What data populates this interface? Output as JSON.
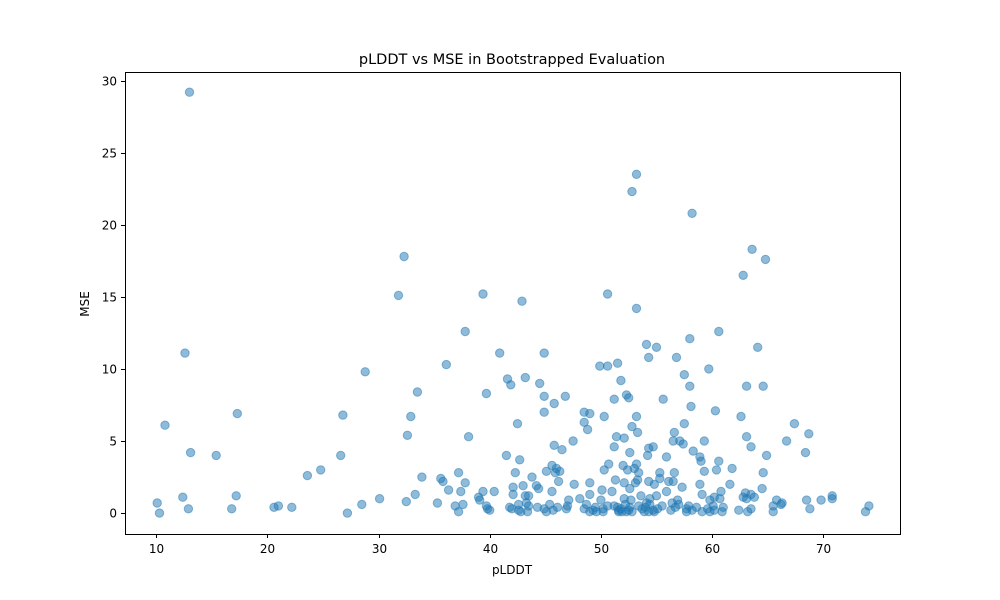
{
  "chart_data": {
    "type": "scatter",
    "title": "pLDDT vs MSE in Bootstrapped Evaluation",
    "xlabel": "pLDDT",
    "ylabel": "MSE",
    "xlim": [
      7.2,
      76.9
    ],
    "ylim": [
      -1.45,
      30.6
    ],
    "xticks": [
      10,
      20,
      30,
      40,
      50,
      60,
      70
    ],
    "yticks": [
      0,
      5,
      10,
      15,
      20,
      25,
      30
    ],
    "grid": false,
    "marker_color": "#1f77b4",
    "marker_alpha": 0.5,
    "points": [
      [
        13.0,
        29.2
      ],
      [
        53.2,
        23.5
      ],
      [
        52.8,
        22.3
      ],
      [
        58.2,
        20.8
      ],
      [
        63.6,
        18.3
      ],
      [
        32.3,
        17.8
      ],
      [
        64.8,
        17.6
      ],
      [
        62.8,
        16.5
      ],
      [
        39.4,
        15.2
      ],
      [
        50.6,
        15.2
      ],
      [
        31.8,
        15.1
      ],
      [
        42.9,
        14.7
      ],
      [
        53.2,
        14.2
      ],
      [
        37.8,
        12.6
      ],
      [
        60.6,
        12.6
      ],
      [
        58.0,
        12.1
      ],
      [
        54.1,
        11.7
      ],
      [
        55.0,
        11.5
      ],
      [
        64.1,
        11.5
      ],
      [
        12.6,
        11.1
      ],
      [
        40.9,
        11.1
      ],
      [
        44.9,
        11.1
      ],
      [
        54.3,
        10.8
      ],
      [
        56.8,
        10.8
      ],
      [
        51.5,
        10.4
      ],
      [
        36.1,
        10.3
      ],
      [
        49.9,
        10.2
      ],
      [
        50.6,
        10.2
      ],
      [
        59.7,
        10.0
      ],
      [
        28.8,
        9.8
      ],
      [
        57.5,
        9.6
      ],
      [
        43.2,
        9.4
      ],
      [
        41.6,
        9.3
      ],
      [
        51.8,
        9.2
      ],
      [
        41.9,
        8.9
      ],
      [
        44.5,
        9.0
      ],
      [
        63.1,
        8.8
      ],
      [
        64.6,
        8.8
      ],
      [
        58.0,
        8.8
      ],
      [
        33.5,
        8.4
      ],
      [
        39.7,
        8.3
      ],
      [
        52.3,
        8.2
      ],
      [
        44.9,
        8.1
      ],
      [
        46.8,
        8.1
      ],
      [
        52.5,
        8.0
      ],
      [
        55.6,
        7.9
      ],
      [
        51.2,
        7.9
      ],
      [
        45.8,
        7.6
      ],
      [
        58.1,
        7.4
      ],
      [
        60.3,
        7.1
      ],
      [
        44.9,
        7.0
      ],
      [
        48.5,
        7.0
      ],
      [
        49.0,
        6.9
      ],
      [
        17.3,
        6.9
      ],
      [
        26.8,
        6.8
      ],
      [
        32.9,
        6.7
      ],
      [
        50.3,
        6.7
      ],
      [
        53.2,
        6.7
      ],
      [
        62.6,
        6.7
      ],
      [
        48.5,
        6.3
      ],
      [
        67.4,
        6.2
      ],
      [
        10.8,
        6.1
      ],
      [
        42.5,
        6.2
      ],
      [
        57.5,
        6.2
      ],
      [
        52.8,
        6.0
      ],
      [
        48.8,
        5.8
      ],
      [
        53.3,
        5.6
      ],
      [
        56.6,
        5.6
      ],
      [
        68.7,
        5.5
      ],
      [
        32.6,
        5.4
      ],
      [
        38.1,
        5.3
      ],
      [
        63.1,
        5.3
      ],
      [
        51.4,
        5.3
      ],
      [
        52.1,
        5.2
      ],
      [
        47.5,
        5.0
      ],
      [
        56.5,
        5.0
      ],
      [
        57.1,
        5.0
      ],
      [
        59.3,
        5.0
      ],
      [
        66.7,
        5.0
      ],
      [
        57.4,
        4.8
      ],
      [
        45.8,
        4.7
      ],
      [
        51.2,
        4.6
      ],
      [
        54.7,
        4.6
      ],
      [
        63.5,
        4.6
      ],
      [
        54.3,
        4.5
      ],
      [
        46.5,
        4.4
      ],
      [
        58.3,
        4.3
      ],
      [
        68.4,
        4.2
      ],
      [
        13.1,
        4.2
      ],
      [
        52.6,
        4.2
      ],
      [
        15.4,
        4.0
      ],
      [
        26.6,
        4.0
      ],
      [
        41.5,
        4.0
      ],
      [
        54.2,
        4.0
      ],
      [
        64.9,
        4.0
      ],
      [
        55.9,
        3.9
      ],
      [
        58.9,
        3.9
      ],
      [
        59.0,
        3.6
      ],
      [
        42.7,
        3.7
      ],
      [
        60.6,
        3.6
      ],
      [
        50.7,
        3.4
      ],
      [
        53.2,
        3.4
      ],
      [
        52.0,
        3.3
      ],
      [
        45.6,
        3.3
      ],
      [
        46.0,
        3.1
      ],
      [
        53.0,
        3.1
      ],
      [
        52.4,
        3.0
      ],
      [
        60.4,
        3.0
      ],
      [
        61.8,
        3.1
      ],
      [
        59.3,
        2.9
      ],
      [
        46.3,
        2.9
      ],
      [
        50.3,
        3.0
      ],
      [
        24.8,
        3.0
      ],
      [
        45.1,
        2.9
      ],
      [
        37.2,
        2.8
      ],
      [
        42.3,
        2.8
      ],
      [
        45.9,
        2.8
      ],
      [
        53.4,
        2.8
      ],
      [
        55.3,
        2.8
      ],
      [
        56.6,
        2.8
      ],
      [
        64.6,
        2.8
      ],
      [
        23.6,
        2.6
      ],
      [
        33.9,
        2.5
      ],
      [
        43.8,
        2.5
      ],
      [
        35.6,
        2.4
      ],
      [
        55.3,
        2.4
      ],
      [
        53.3,
        2.3
      ],
      [
        51.3,
        2.3
      ],
      [
        35.8,
        2.2
      ],
      [
        46.2,
        2.2
      ],
      [
        56.5,
        2.2
      ],
      [
        54.3,
        2.2
      ],
      [
        52.1,
        2.1
      ],
      [
        56.1,
        2.2
      ],
      [
        53.1,
        2.1
      ],
      [
        37.8,
        2.1
      ],
      [
        49.0,
        2.1
      ],
      [
        58.9,
        2.0
      ],
      [
        47.6,
        2.0
      ],
      [
        43.0,
        1.9
      ],
      [
        44.2,
        1.9
      ],
      [
        54.8,
        2.0
      ],
      [
        61.6,
        2.0
      ],
      [
        42.1,
        1.8
      ],
      [
        57.3,
        1.8
      ],
      [
        44.4,
        1.7
      ],
      [
        52.6,
        1.7
      ],
      [
        64.5,
        1.7
      ],
      [
        36.3,
        1.6
      ],
      [
        50.1,
        1.6
      ],
      [
        37.4,
        1.5
      ],
      [
        39.4,
        1.5
      ],
      [
        40.4,
        1.5
      ],
      [
        45.6,
        1.5
      ],
      [
        51.0,
        1.5
      ],
      [
        55.9,
        1.5
      ],
      [
        60.8,
        1.5
      ],
      [
        63.0,
        1.4
      ],
      [
        33.3,
        1.3
      ],
      [
        42.1,
        1.3
      ],
      [
        49.0,
        1.3
      ],
      [
        59.1,
        1.3
      ],
      [
        63.5,
        1.3
      ],
      [
        43.2,
        1.2
      ],
      [
        53.6,
        1.2
      ],
      [
        17.2,
        1.2
      ],
      [
        43.5,
        1.2
      ],
      [
        55.0,
        1.2
      ],
      [
        63.8,
        1.1
      ],
      [
        12.4,
        1.1
      ],
      [
        39.0,
        1.1
      ],
      [
        60.2,
        1.1
      ],
      [
        62.8,
        1.1
      ],
      [
        70.8,
        1.2
      ],
      [
        54.4,
        1.0
      ],
      [
        52.1,
        1.0
      ],
      [
        30.1,
        1.0
      ],
      [
        48.1,
        1.0
      ],
      [
        60.7,
        1.0
      ],
      [
        63.1,
        1.0
      ],
      [
        70.8,
        1.0
      ],
      [
        39.1,
        0.9
      ],
      [
        47.1,
        0.9
      ],
      [
        50.0,
        0.9
      ],
      [
        52.7,
        0.9
      ],
      [
        56.9,
        0.9
      ],
      [
        59.8,
        0.9
      ],
      [
        65.8,
        0.9
      ],
      [
        68.5,
        0.9
      ],
      [
        69.8,
        0.9
      ],
      [
        10.1,
        0.7
      ],
      [
        35.3,
        0.7
      ],
      [
        43.3,
        0.7
      ],
      [
        54.1,
        0.7
      ],
      [
        56.4,
        0.7
      ],
      [
        66.3,
        0.7
      ],
      [
        32.5,
        0.8
      ],
      [
        28.5,
        0.6
      ],
      [
        37.6,
        0.6
      ],
      [
        42.6,
        0.6
      ],
      [
        45.4,
        0.6
      ],
      [
        48.7,
        0.6
      ],
      [
        52.2,
        0.6
      ],
      [
        54.4,
        0.6
      ],
      [
        57.0,
        0.6
      ],
      [
        66.2,
        0.6
      ],
      [
        21.0,
        0.5
      ],
      [
        36.9,
        0.5
      ],
      [
        39.7,
        0.5
      ],
      [
        43.5,
        0.5
      ],
      [
        47.0,
        0.5
      ],
      [
        50.6,
        0.5
      ],
      [
        51.2,
        0.5
      ],
      [
        53.4,
        0.5
      ],
      [
        55.5,
        0.5
      ],
      [
        57.9,
        0.5
      ],
      [
        60.1,
        0.5
      ],
      [
        65.5,
        0.5
      ],
      [
        74.1,
        0.5
      ],
      [
        20.6,
        0.4
      ],
      [
        22.2,
        0.4
      ],
      [
        41.8,
        0.4
      ],
      [
        44.3,
        0.4
      ],
      [
        46.1,
        0.4
      ],
      [
        49.5,
        0.4
      ],
      [
        51.5,
        0.4
      ],
      [
        52.6,
        0.4
      ],
      [
        54.0,
        0.4
      ],
      [
        56.7,
        0.4
      ],
      [
        58.6,
        0.4
      ],
      [
        61.0,
        0.4
      ],
      [
        12.9,
        0.3
      ],
      [
        16.8,
        0.3
      ],
      [
        39.8,
        0.3
      ],
      [
        42.0,
        0.3
      ],
      [
        44.9,
        0.3
      ],
      [
        46.9,
        0.3
      ],
      [
        48.5,
        0.3
      ],
      [
        50.2,
        0.3
      ],
      [
        51.8,
        0.3
      ],
      [
        53.7,
        0.3
      ],
      [
        55.1,
        0.3
      ],
      [
        57.7,
        0.3
      ],
      [
        59.6,
        0.3
      ],
      [
        63.5,
        0.3
      ],
      [
        68.8,
        0.3
      ],
      [
        40.0,
        0.2
      ],
      [
        42.6,
        0.2
      ],
      [
        45.7,
        0.2
      ],
      [
        49.3,
        0.2
      ],
      [
        51.6,
        0.2
      ],
      [
        52.5,
        0.2
      ],
      [
        54.7,
        0.2
      ],
      [
        56.3,
        0.2
      ],
      [
        58.2,
        0.2
      ],
      [
        60.2,
        0.2
      ],
      [
        62.4,
        0.2
      ],
      [
        10.3,
        0.0
      ],
      [
        27.2,
        0.0
      ],
      [
        37.2,
        0.1
      ],
      [
        42.8,
        0.1
      ],
      [
        43.4,
        0.1
      ],
      [
        45.1,
        0.1
      ],
      [
        49.0,
        0.1
      ],
      [
        49.6,
        0.1
      ],
      [
        50.2,
        0.1
      ],
      [
        51.6,
        0.1
      ],
      [
        51.9,
        0.1
      ],
      [
        52.3,
        0.1
      ],
      [
        52.8,
        0.1
      ],
      [
        53.9,
        0.1
      ],
      [
        54.3,
        0.1
      ],
      [
        54.8,
        0.1
      ],
      [
        57.7,
        0.1
      ],
      [
        59.1,
        0.1
      ],
      [
        59.8,
        0.1
      ],
      [
        60.9,
        0.1
      ],
      [
        63.2,
        0.1
      ],
      [
        65.5,
        0.1
      ],
      [
        73.8,
        0.1
      ]
    ]
  }
}
